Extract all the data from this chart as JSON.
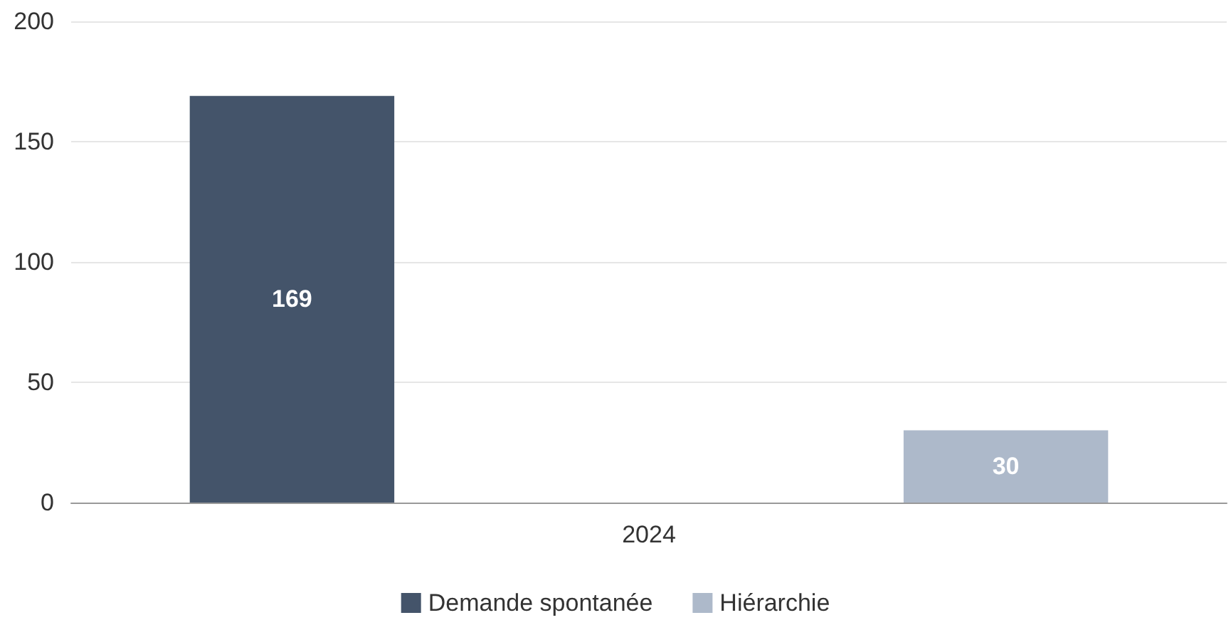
{
  "chart_data": {
    "type": "bar",
    "categories": [
      "2024"
    ],
    "series": [
      {
        "name": "Demande spontanée",
        "color": "#44546a",
        "values": [
          169
        ]
      },
      {
        "name": "Hiérarchie",
        "color": "#adb9ca",
        "values": [
          30
        ]
      }
    ],
    "ylim": [
      0,
      200
    ],
    "yticks": [
      0,
      50,
      100,
      150,
      200
    ],
    "grid": "y",
    "legend": "bottom",
    "data_labels": true
  }
}
